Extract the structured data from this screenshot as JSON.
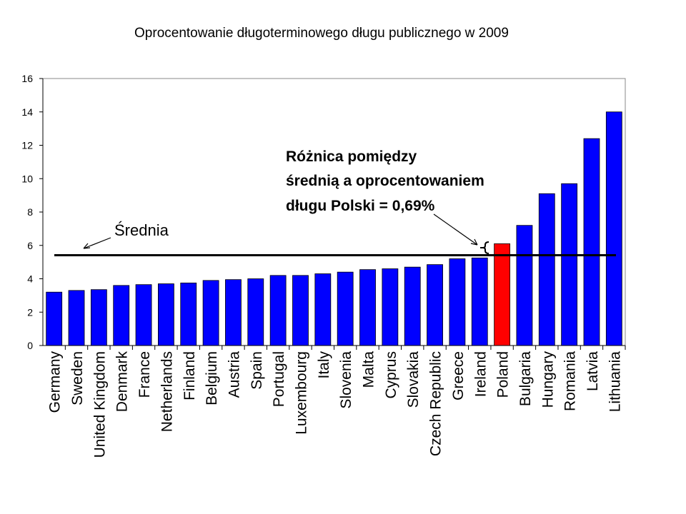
{
  "chart_data": {
    "type": "bar",
    "title": "Oprocentowanie długoterminowego długu publicznego w 2009",
    "categories": [
      "Germany",
      "Sweden",
      "United Kingdom",
      "Denmark",
      "France",
      "Netherlands",
      "Finland",
      "Belgium",
      "Austria",
      "Spain",
      "Portugal",
      "Luxembourg",
      "Italy",
      "Slovenia",
      "Malta",
      "Cyprus",
      "Slovakia",
      "Czech Republic",
      "Greece",
      "Ireland",
      "Poland",
      "Bulgaria",
      "Hungary",
      "Romania",
      "Latvia",
      "Lithuania"
    ],
    "values": [
      3.2,
      3.3,
      3.35,
      3.6,
      3.65,
      3.7,
      3.75,
      3.9,
      3.95,
      4.0,
      4.2,
      4.2,
      4.3,
      4.4,
      4.55,
      4.6,
      4.7,
      4.85,
      5.2,
      5.25,
      6.1,
      7.2,
      9.1,
      9.7,
      12.4,
      14.0
    ],
    "colors": [
      "#0000ff",
      "#0000ff",
      "#0000ff",
      "#0000ff",
      "#0000ff",
      "#0000ff",
      "#0000ff",
      "#0000ff",
      "#0000ff",
      "#0000ff",
      "#0000ff",
      "#0000ff",
      "#0000ff",
      "#0000ff",
      "#0000ff",
      "#0000ff",
      "#0000ff",
      "#0000ff",
      "#0000ff",
      "#0000ff",
      "#ff0000",
      "#0000ff",
      "#0000ff",
      "#0000ff",
      "#0000ff",
      "#0000ff"
    ],
    "ylim": [
      0,
      16
    ],
    "yticks": [
      0,
      2,
      4,
      6,
      8,
      10,
      12,
      14,
      16
    ],
    "average": 5.41,
    "average_label": "Średnia",
    "annotation": [
      "Różnica pomiędzy",
      "średnią a oprocentowaniem",
      "długu Polski = 0,69%"
    ]
  }
}
